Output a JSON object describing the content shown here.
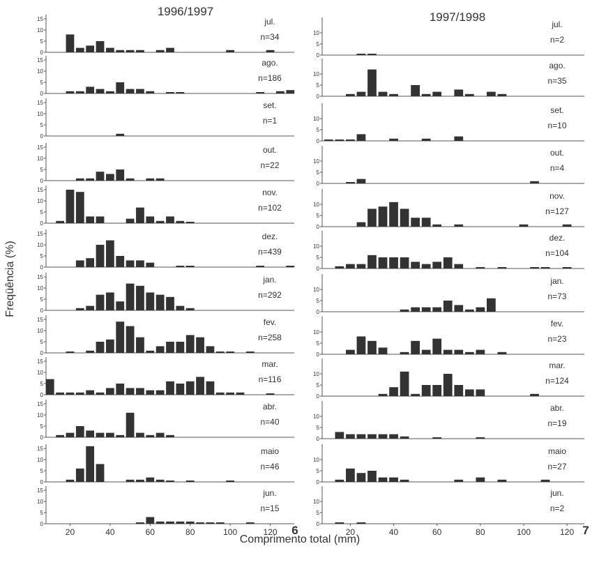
{
  "ylabel": "Freqüência (%)",
  "xlabel": "Comprimento total (mm)",
  "colors": {
    "bar": "#333333",
    "axis": "#555555",
    "text": "#333333"
  },
  "chart_data": [
    {
      "type": "bar",
      "title": "1996/1997",
      "panel_number": "6",
      "x_ticks": [
        "20",
        "40",
        "60",
        "80",
        "100",
        "120"
      ],
      "y_ticks": [
        "0",
        "5",
        "10",
        "15"
      ],
      "xlim": [
        8,
        132
      ],
      "ylim": [
        0,
        15
      ],
      "months": [
        {
          "month": "jul.",
          "n": "n=34",
          "bins": [
            [
              20,
              8
            ],
            [
              25,
              2
            ],
            [
              30,
              3
            ],
            [
              35,
              5
            ],
            [
              40,
              2
            ],
            [
              45,
              1
            ],
            [
              50,
              1
            ],
            [
              55,
              1
            ],
            [
              65,
              1
            ],
            [
              70,
              2
            ],
            [
              100,
              1
            ],
            [
              120,
              1
            ]
          ]
        },
        {
          "month": "ago.",
          "n": "n=186",
          "bins": [
            [
              20,
              1
            ],
            [
              25,
              1
            ],
            [
              30,
              3
            ],
            [
              35,
              2
            ],
            [
              40,
              1
            ],
            [
              45,
              5
            ],
            [
              50,
              2
            ],
            [
              55,
              2
            ],
            [
              60,
              1
            ],
            [
              70,
              0.5
            ],
            [
              75,
              0.5
            ],
            [
              115,
              0.5
            ],
            [
              125,
              1
            ],
            [
              130,
              1.5
            ]
          ]
        },
        {
          "month": "set.",
          "n": "n=1",
          "bins": [
            [
              45,
              1
            ]
          ]
        },
        {
          "month": "out.",
          "n": "n=22",
          "bins": [
            [
              25,
              1
            ],
            [
              30,
              1
            ],
            [
              35,
              4
            ],
            [
              40,
              3
            ],
            [
              45,
              5
            ],
            [
              50,
              1
            ],
            [
              60,
              1
            ],
            [
              65,
              1
            ]
          ]
        },
        {
          "month": "nov.",
          "n": "n=102",
          "bins": [
            [
              15,
              1
            ],
            [
              20,
              15
            ],
            [
              25,
              14
            ],
            [
              30,
              3
            ],
            [
              35,
              3
            ],
            [
              50,
              2
            ],
            [
              55,
              7
            ],
            [
              60,
              3
            ],
            [
              65,
              1
            ],
            [
              70,
              3
            ],
            [
              75,
              1
            ],
            [
              80,
              0.5
            ]
          ]
        },
        {
          "month": "dez.",
          "n": "n=439",
          "bins": [
            [
              25,
              3
            ],
            [
              30,
              4
            ],
            [
              35,
              10
            ],
            [
              40,
              12
            ],
            [
              45,
              5
            ],
            [
              50,
              3
            ],
            [
              55,
              3
            ],
            [
              60,
              2
            ],
            [
              75,
              0.5
            ],
            [
              80,
              0.5
            ],
            [
              115,
              0.5
            ],
            [
              130,
              0.5
            ]
          ]
        },
        {
          "month": "jan.",
          "n": "n=292",
          "bins": [
            [
              25,
              1
            ],
            [
              30,
              2
            ],
            [
              35,
              7
            ],
            [
              40,
              8
            ],
            [
              45,
              4
            ],
            [
              50,
              12
            ],
            [
              55,
              11
            ],
            [
              60,
              8
            ],
            [
              65,
              7
            ],
            [
              70,
              6
            ],
            [
              75,
              2
            ],
            [
              80,
              1
            ]
          ]
        },
        {
          "month": "fev.",
          "n": "n=258",
          "bins": [
            [
              20,
              0.5
            ],
            [
              30,
              1
            ],
            [
              35,
              5
            ],
            [
              40,
              6
            ],
            [
              45,
              14
            ],
            [
              50,
              12
            ],
            [
              55,
              7
            ],
            [
              60,
              1
            ],
            [
              65,
              3
            ],
            [
              70,
              5
            ],
            [
              75,
              5
            ],
            [
              80,
              8
            ],
            [
              85,
              7
            ],
            [
              90,
              3
            ],
            [
              95,
              0.5
            ],
            [
              100,
              0.5
            ],
            [
              110,
              0.5
            ]
          ]
        },
        {
          "month": "mar.",
          "n": "n=116",
          "bins": [
            [
              10,
              7
            ],
            [
              15,
              1
            ],
            [
              20,
              1
            ],
            [
              25,
              1
            ],
            [
              30,
              2
            ],
            [
              35,
              1
            ],
            [
              40,
              3
            ],
            [
              45,
              5
            ],
            [
              50,
              3
            ],
            [
              55,
              3
            ],
            [
              60,
              2
            ],
            [
              65,
              2
            ],
            [
              70,
              6
            ],
            [
              75,
              5
            ],
            [
              80,
              6
            ],
            [
              85,
              8
            ],
            [
              90,
              6
            ],
            [
              95,
              1
            ],
            [
              100,
              1
            ],
            [
              105,
              1
            ],
            [
              120,
              0.5
            ]
          ]
        },
        {
          "month": "abr.",
          "n": "n=40",
          "bins": [
            [
              15,
              1
            ],
            [
              20,
              2
            ],
            [
              25,
              5
            ],
            [
              30,
              3
            ],
            [
              35,
              2
            ],
            [
              40,
              2
            ],
            [
              45,
              1
            ],
            [
              50,
              11
            ],
            [
              55,
              2
            ],
            [
              60,
              1
            ],
            [
              65,
              2
            ],
            [
              70,
              1
            ]
          ]
        },
        {
          "month": "maio",
          "n": "n=46",
          "bins": [
            [
              20,
              1
            ],
            [
              25,
              6
            ],
            [
              30,
              16
            ],
            [
              35,
              8
            ],
            [
              50,
              1
            ],
            [
              55,
              1
            ],
            [
              60,
              2
            ],
            [
              65,
              1
            ],
            [
              70,
              0.5
            ],
            [
              80,
              0.5
            ],
            [
              100,
              0.5
            ]
          ]
        },
        {
          "month": "jun.",
          "n": "n=15",
          "bins": [
            [
              55,
              0.5
            ],
            [
              60,
              3
            ],
            [
              65,
              1
            ],
            [
              70,
              1
            ],
            [
              75,
              1
            ],
            [
              80,
              1
            ],
            [
              85,
              0.5
            ],
            [
              90,
              0.5
            ],
            [
              95,
              0.5
            ],
            [
              110,
              0.5
            ]
          ]
        }
      ]
    },
    {
      "type": "bar",
      "title": "1997/1998",
      "panel_number": "7",
      "x_ticks": [
        "20",
        "40",
        "60",
        "80",
        "100",
        "120"
      ],
      "y_ticks": [
        "0",
        "5",
        "10"
      ],
      "xlim": [
        7,
        128
      ],
      "ylim": [
        0,
        15
      ],
      "months": [
        {
          "month": "jul.",
          "n": "n=2",
          "bins": [
            [
              25,
              0.5
            ],
            [
              30,
              0.5
            ]
          ]
        },
        {
          "month": "ago.",
          "n": "n=35",
          "bins": [
            [
              20,
              1
            ],
            [
              25,
              2
            ],
            [
              30,
              12
            ],
            [
              35,
              2
            ],
            [
              40,
              1
            ],
            [
              50,
              5
            ],
            [
              55,
              1
            ],
            [
              60,
              2
            ],
            [
              70,
              3
            ],
            [
              75,
              1
            ],
            [
              85,
              2
            ],
            [
              90,
              1
            ]
          ]
        },
        {
          "month": "set.",
          "n": "n=10",
          "bins": [
            [
              10,
              0.5
            ],
            [
              15,
              0.5
            ],
            [
              20,
              0.5
            ],
            [
              25,
              3
            ],
            [
              40,
              1
            ],
            [
              55,
              1
            ],
            [
              70,
              2
            ]
          ]
        },
        {
          "month": "out.",
          "n": "n=4",
          "bins": [
            [
              20,
              0.5
            ],
            [
              25,
              2
            ],
            [
              105,
              1
            ]
          ]
        },
        {
          "month": "nov.",
          "n": "n=127",
          "bins": [
            [
              25,
              2
            ],
            [
              30,
              8
            ],
            [
              35,
              9
            ],
            [
              40,
              11
            ],
            [
              45,
              8
            ],
            [
              50,
              4
            ],
            [
              55,
              4
            ],
            [
              60,
              1
            ],
            [
              70,
              1
            ],
            [
              100,
              1
            ],
            [
              120,
              1
            ]
          ]
        },
        {
          "month": "dez.",
          "n": "n=104",
          "bins": [
            [
              15,
              1
            ],
            [
              20,
              2
            ],
            [
              25,
              2
            ],
            [
              30,
              6
            ],
            [
              35,
              5
            ],
            [
              40,
              5
            ],
            [
              45,
              5
            ],
            [
              50,
              3
            ],
            [
              55,
              2
            ],
            [
              60,
              3
            ],
            [
              65,
              5
            ],
            [
              70,
              2
            ],
            [
              80,
              0.5
            ],
            [
              90,
              0.5
            ],
            [
              105,
              0.5
            ],
            [
              110,
              0.5
            ],
            [
              120,
              0.5
            ]
          ]
        },
        {
          "month": "jan.",
          "n": "n=73",
          "bins": [
            [
              45,
              1
            ],
            [
              50,
              2
            ],
            [
              55,
              2
            ],
            [
              60,
              2
            ],
            [
              65,
              5
            ],
            [
              70,
              3
            ],
            [
              75,
              1
            ],
            [
              80,
              2
            ],
            [
              85,
              6
            ]
          ]
        },
        {
          "month": "fev.",
          "n": "n=23",
          "bins": [
            [
              20,
              2
            ],
            [
              25,
              8
            ],
            [
              30,
              6
            ],
            [
              35,
              3
            ],
            [
              45,
              1
            ],
            [
              50,
              6
            ],
            [
              55,
              2
            ],
            [
              60,
              7
            ],
            [
              65,
              2
            ],
            [
              70,
              2
            ],
            [
              75,
              1
            ],
            [
              80,
              2
            ],
            [
              90,
              1
            ]
          ]
        },
        {
          "month": "mar.",
          "n": "n=124",
          "bins": [
            [
              35,
              1
            ],
            [
              40,
              4
            ],
            [
              45,
              11
            ],
            [
              50,
              1
            ],
            [
              55,
              5
            ],
            [
              60,
              5
            ],
            [
              65,
              10
            ],
            [
              70,
              5
            ],
            [
              75,
              3
            ],
            [
              80,
              3
            ],
            [
              105,
              1
            ]
          ]
        },
        {
          "month": "abr.",
          "n": "n=19",
          "bins": [
            [
              15,
              3
            ],
            [
              20,
              2
            ],
            [
              25,
              2
            ],
            [
              30,
              2
            ],
            [
              35,
              2
            ],
            [
              40,
              2
            ],
            [
              45,
              1
            ],
            [
              60,
              0.5
            ],
            [
              80,
              0.5
            ]
          ]
        },
        {
          "month": "maio",
          "n": "n=27",
          "bins": [
            [
              15,
              1
            ],
            [
              20,
              6
            ],
            [
              25,
              4
            ],
            [
              30,
              5
            ],
            [
              35,
              2
            ],
            [
              40,
              2
            ],
            [
              45,
              1
            ],
            [
              70,
              1
            ],
            [
              80,
              2
            ],
            [
              90,
              1
            ],
            [
              110,
              1
            ]
          ]
        },
        {
          "month": "jun.",
          "n": "n=2",
          "bins": [
            [
              15,
              0.5
            ],
            [
              25,
              0.5
            ]
          ]
        }
      ]
    }
  ]
}
